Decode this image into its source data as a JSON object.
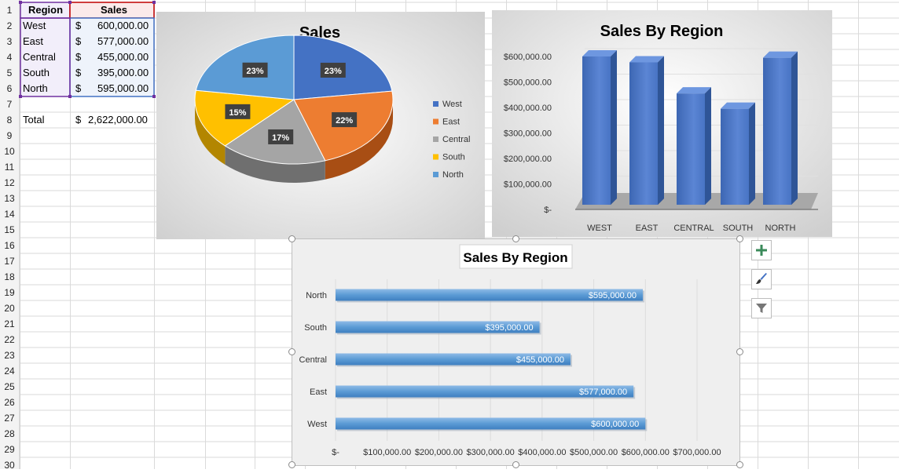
{
  "sheet": {
    "header": {
      "region": "Region",
      "sales": "Sales"
    },
    "rows": [
      {
        "region": "West",
        "cur": "$",
        "value": "600,000.00"
      },
      {
        "region": "East",
        "cur": "$",
        "value": "577,000.00"
      },
      {
        "region": "Central",
        "cur": "$",
        "value": "455,000.00"
      },
      {
        "region": "South",
        "cur": "$",
        "value": "395,000.00"
      },
      {
        "region": "North",
        "cur": "$",
        "value": "595,000.00"
      }
    ],
    "total": {
      "label": "Total",
      "cur": "$",
      "value": "2,622,000.00"
    },
    "row_numbers": [
      "1",
      "2",
      "3",
      "4",
      "5",
      "6",
      "7",
      "8",
      "9",
      "10",
      "11",
      "12",
      "13",
      "14",
      "15",
      "16",
      "17",
      "18",
      "19",
      "20",
      "21",
      "22",
      "23",
      "24",
      "25",
      "26",
      "27",
      "28",
      "29",
      "30"
    ]
  },
  "chart_data": [
    {
      "type": "pie",
      "title": "Sales",
      "categories": [
        "West",
        "East",
        "Central",
        "South",
        "North"
      ],
      "values": [
        600000,
        577000,
        455000,
        395000,
        595000
      ],
      "data_labels": [
        "23%",
        "22%",
        "17%",
        "15%",
        "23%"
      ],
      "colors": [
        "#4472c4",
        "#ed7d31",
        "#a5a5a5",
        "#ffc000",
        "#5b9bd5"
      ],
      "legend": "right",
      "style": "3d"
    },
    {
      "type": "bar",
      "title": "Sales By Region",
      "categories": [
        "WEST",
        "EAST",
        "CENTRAL",
        "SOUTH",
        "NORTH"
      ],
      "values": [
        600000,
        577000,
        455000,
        395000,
        595000
      ],
      "ylim": [
        0,
        600000
      ],
      "yticks": [
        "$-",
        "$100,000.00",
        "$200,000.00",
        "$300,000.00",
        "$400,000.00",
        "$500,000.00",
        "$600,000.00"
      ],
      "color": "#4472c4",
      "style": "3d-column"
    },
    {
      "type": "bar",
      "orientation": "horizontal",
      "title": "Sales By Region",
      "categories": [
        "North",
        "South",
        "Central",
        "East",
        "West"
      ],
      "values": [
        595000,
        395000,
        455000,
        577000,
        600000
      ],
      "data_labels": [
        "$595,000.00",
        "$395,000.00",
        "$455,000.00",
        "$577,000.00",
        "$600,000.00"
      ],
      "xlim": [
        0,
        700000
      ],
      "xticks": [
        "$-",
        "$100,000.00",
        "$200,000.00",
        "$300,000.00",
        "$400,000.00",
        "$500,000.00",
        "$600,000.00",
        "$700,000.00"
      ],
      "color": "#5b9bd5"
    }
  ],
  "colors": {
    "grid": "#d9d9d9",
    "region_border": "#7030a0",
    "sales_border": "#c00000",
    "selection": "#4472c4"
  }
}
